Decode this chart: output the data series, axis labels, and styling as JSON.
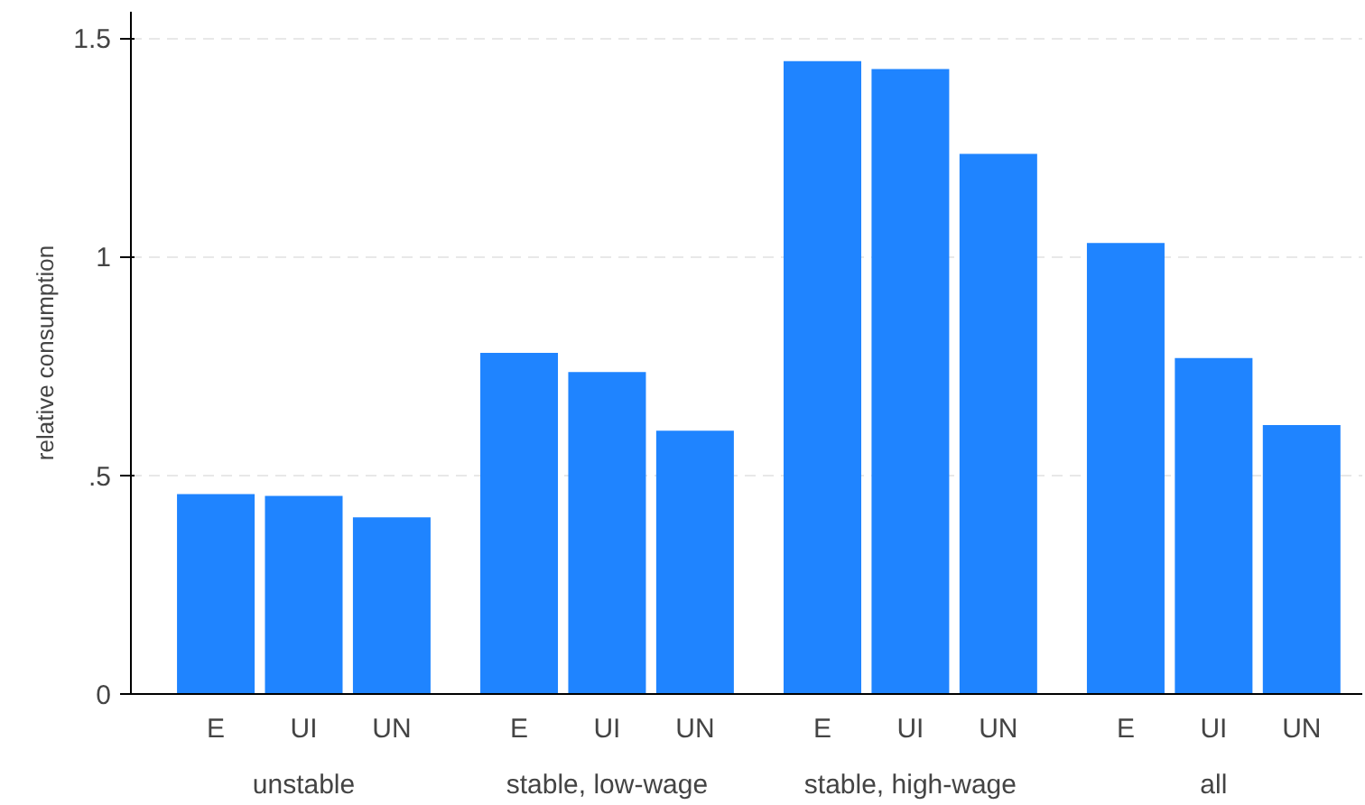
{
  "chart_data": {
    "type": "bar",
    "ylabel": "relative consumption",
    "categories": [
      "unstable",
      "stable, low-wage",
      "stable, high-wage",
      "all"
    ],
    "series": [
      {
        "name": "E",
        "color": "#1f84ff",
        "values": [
          0.457,
          0.78,
          1.447,
          1.031
        ]
      },
      {
        "name": "UI",
        "color": "#1f84ff",
        "values": [
          0.453,
          0.736,
          1.429,
          0.768
        ]
      },
      {
        "name": "UN",
        "color": "#1f84ff",
        "values": [
          0.404,
          0.602,
          1.235,
          0.615
        ]
      }
    ],
    "ylim": [
      0,
      1.56
    ],
    "yticks": [
      0,
      {
        "value": 0.5,
        "label": ".5"
      },
      1,
      1.5
    ],
    "grid": "y",
    "legend": false
  }
}
